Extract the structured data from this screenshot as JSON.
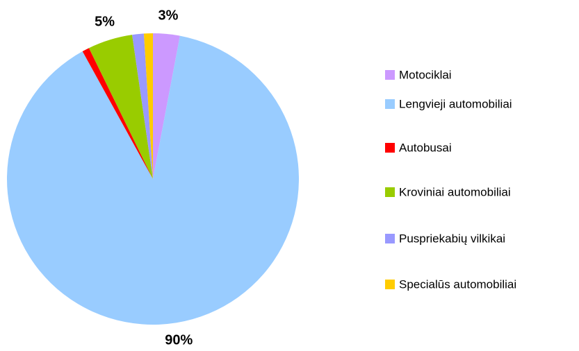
{
  "chart_data": {
    "type": "pie",
    "categories": [
      "Motociklai",
      "Lengvieji automobiliai",
      "Autobusai",
      "Kroviniai automobiliai",
      "Puspriekabių vilkikai",
      "Specialūs automobiliai"
    ],
    "values": [
      3,
      90,
      0.8,
      5,
      1.3,
      1
    ],
    "value_labels": [
      "3%",
      "90%",
      null,
      "5%",
      null,
      null
    ],
    "colors": [
      "#cc99ff",
      "#99ccff",
      "#ff0000",
      "#99cc00",
      "#9999ff",
      "#ffcc00"
    ],
    "legend": "right"
  }
}
